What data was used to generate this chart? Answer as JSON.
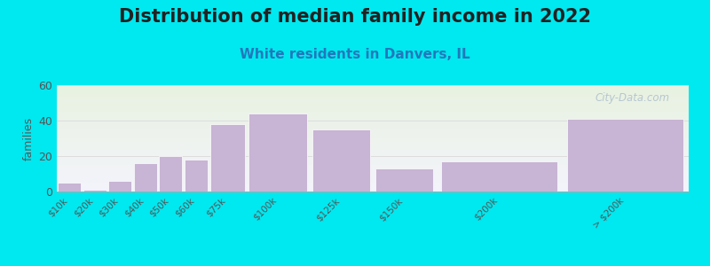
{
  "title": "Distribution of median family income in 2022",
  "subtitle": "White residents in Danvers, IL",
  "ylabel": "families",
  "categories": [
    "$10k",
    "$20k",
    "$30k",
    "$40k",
    "$50k",
    "$60k",
    "$75k",
    "$100k",
    "$125k",
    "$150k",
    "$200k",
    "> $200k"
  ],
  "values": [
    5,
    1,
    6,
    16,
    20,
    18,
    38,
    44,
    35,
    13,
    17,
    41
  ],
  "bar_widths": [
    10,
    10,
    10,
    10,
    10,
    10,
    15,
    25,
    25,
    25,
    50,
    50
  ],
  "bar_lefts": [
    0,
    10,
    20,
    30,
    40,
    50,
    60,
    75,
    100,
    125,
    150,
    200
  ],
  "bar_color": "#c8b4d4",
  "bar_edge_color": "#ffffff",
  "ylim": [
    0,
    60
  ],
  "yticks": [
    0,
    20,
    40,
    60
  ],
  "xlim": [
    0,
    250
  ],
  "background_color": "#00e8f0",
  "plot_bg_top_color": "#e8f2e0",
  "plot_bg_bottom_color": "#f4f4fc",
  "title_fontsize": 15,
  "subtitle_fontsize": 11,
  "title_color": "#222222",
  "subtitle_color": "#2277bb",
  "watermark": "City-Data.com",
  "watermark_color": "#aabbcc",
  "tick_label_color": "#555555",
  "grid_color": "#dddddd"
}
